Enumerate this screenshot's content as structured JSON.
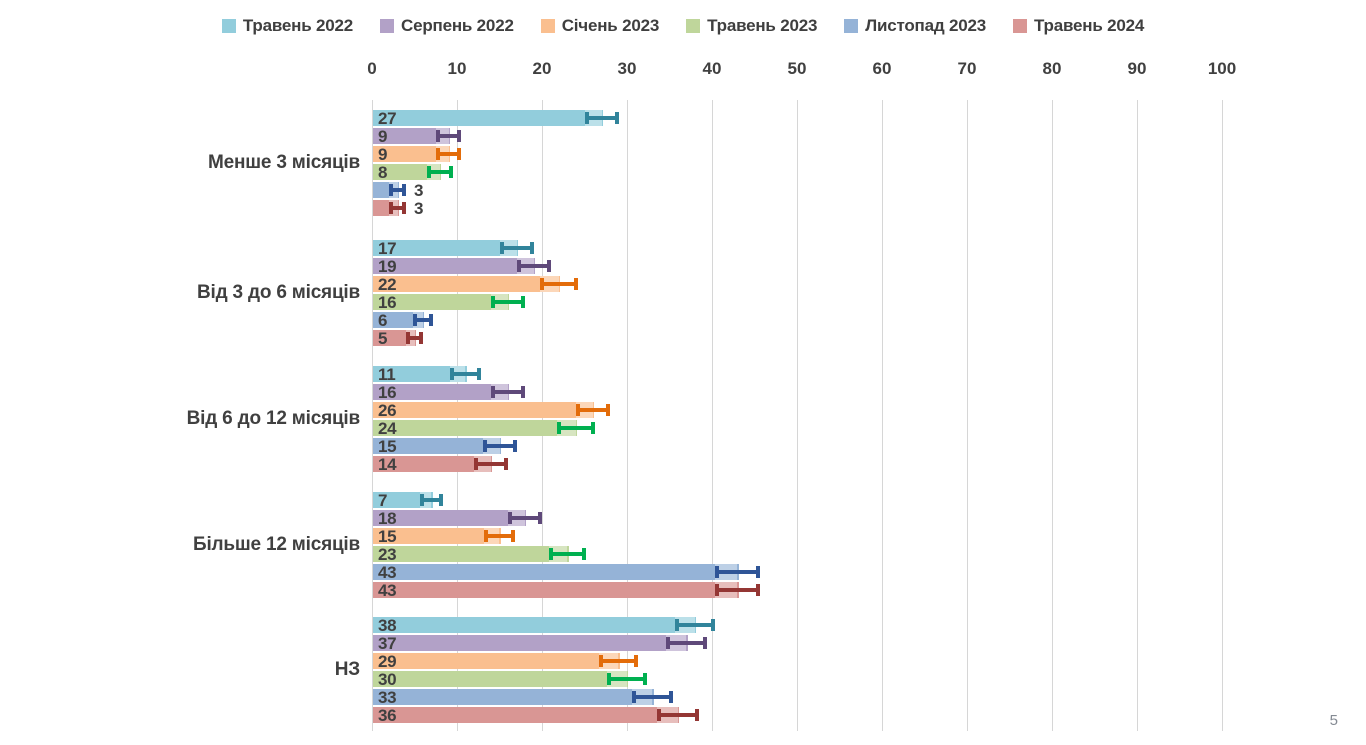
{
  "page_number": "5",
  "chart_data": {
    "type": "bar",
    "orientation": "horizontal",
    "title": "",
    "xlabel": "",
    "ylabel": "",
    "xlim": [
      0,
      100
    ],
    "x_ticks": [
      0,
      10,
      20,
      30,
      40,
      50,
      60,
      70,
      80,
      90,
      100
    ],
    "grid": true,
    "legend_position": "top",
    "error_bars": true,
    "categories": [
      "Менше 3 місяців",
      "Від 3 до 6 місяців",
      "Від 6 до 12 місяців",
      "Більше 12 місяців",
      "НЗ"
    ],
    "series": [
      {
        "name": "Травень 2022",
        "color": "#92CDDC",
        "error_color": "#31849B",
        "values": [
          27,
          17,
          11,
          7,
          38
        ],
        "errors": [
          2.0,
          2.0,
          1.8,
          1.3,
          2.3
        ]
      },
      {
        "name": "Серпень 2022",
        "color": "#B2A1C7",
        "error_color": "#5F497A",
        "values": [
          9,
          19,
          16,
          18,
          37
        ],
        "errors": [
          1.5,
          2.0,
          2.0,
          2.0,
          2.4
        ]
      },
      {
        "name": "Січень 2023",
        "color": "#FABF8F",
        "error_color": "#E36C0A",
        "values": [
          9,
          22,
          26,
          15,
          29
        ],
        "errors": [
          1.5,
          2.2,
          2.0,
          1.8,
          2.3
        ]
      },
      {
        "name": "Травень 2023",
        "color": "#BFD69B",
        "error_color": "#00B050",
        "values": [
          8,
          16,
          24,
          23,
          30
        ],
        "errors": [
          1.5,
          2.0,
          2.2,
          2.2,
          2.3
        ]
      },
      {
        "name": "Листопад 2023",
        "color": "#95B3D7",
        "error_color": "#2F5597",
        "values": [
          3,
          6,
          15,
          43,
          33
        ],
        "errors": [
          1.0,
          1.2,
          2.0,
          2.6,
          2.4
        ]
      },
      {
        "name": "Травень 2024",
        "color": "#D99694",
        "error_color": "#943634",
        "values": [
          3,
          5,
          14,
          43,
          36
        ],
        "errors": [
          1.0,
          1.0,
          2.0,
          2.6,
          2.5
        ]
      }
    ]
  }
}
